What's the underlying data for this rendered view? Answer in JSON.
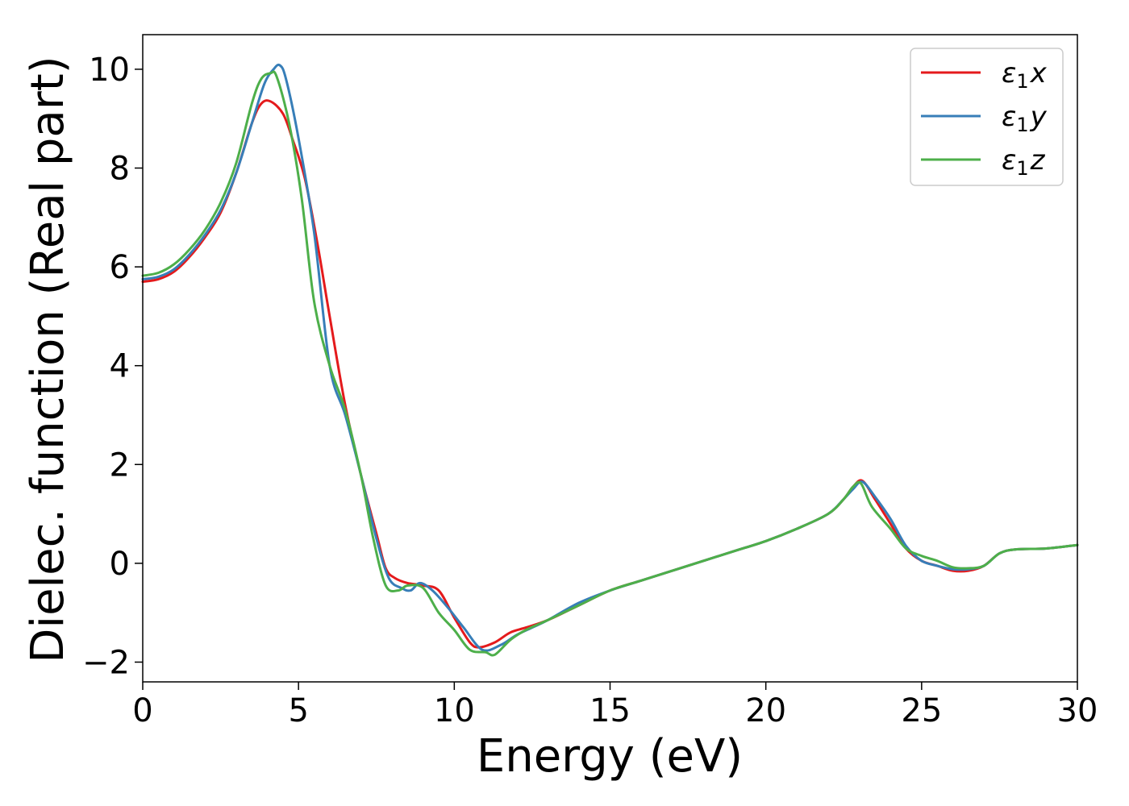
{
  "chart_data": {
    "type": "line",
    "xlabel": "Energy (eV)",
    "ylabel": "Dielec. function (Real part)",
    "xlim": [
      0,
      30
    ],
    "ylim": [
      -2.4,
      10.7
    ],
    "xticks": [
      0,
      5,
      10,
      15,
      20,
      25,
      30
    ],
    "yticks": [
      -2,
      0,
      2,
      4,
      6,
      8,
      10
    ],
    "xtick_labels": [
      "0",
      "5",
      "10",
      "15",
      "20",
      "25",
      "30"
    ],
    "ytick_labels": [
      "−2",
      "0",
      "2",
      "4",
      "6",
      "8",
      "10"
    ],
    "grid": false,
    "legend_position": "top-right",
    "series": [
      {
        "name": "ε₁x",
        "legend_base": "ε",
        "legend_sub": "1",
        "legend_var": "x",
        "color": "#e41a1c",
        "x": [
          0,
          0.5,
          1,
          1.5,
          2,
          2.5,
          3,
          3.5,
          3.8,
          4.1,
          4.5,
          4.8,
          5.2,
          5.6,
          6,
          6.5,
          7,
          7.5,
          7.8,
          8.1,
          8.5,
          9,
          9.5,
          10,
          10.5,
          10.8,
          11.3,
          11.8,
          12.3,
          13,
          14,
          15,
          16,
          17,
          18,
          19,
          20,
          21,
          22,
          22.5,
          22.8,
          23.1,
          23.5,
          24,
          24.5,
          25,
          25.5,
          26,
          26.5,
          27,
          27.5,
          28,
          29,
          30
        ],
        "y": [
          5.7,
          5.75,
          5.9,
          6.2,
          6.6,
          7.1,
          7.9,
          8.9,
          9.3,
          9.35,
          9.1,
          8.6,
          7.8,
          6.5,
          5.0,
          3.2,
          1.8,
          0.6,
          -0.1,
          -0.3,
          -0.4,
          -0.45,
          -0.55,
          -1.1,
          -1.6,
          -1.7,
          -1.6,
          -1.4,
          -1.3,
          -1.15,
          -0.85,
          -0.55,
          -0.35,
          -0.15,
          0.05,
          0.25,
          0.45,
          0.7,
          1.0,
          1.3,
          1.55,
          1.67,
          1.3,
          0.8,
          0.3,
          0.05,
          -0.05,
          -0.15,
          -0.15,
          -0.05,
          0.2,
          0.28,
          0.3,
          0.37
        ]
      },
      {
        "name": "ε₁y",
        "legend_base": "ε",
        "legend_sub": "1",
        "legend_var": "y",
        "color": "#377eb8",
        "x": [
          0,
          0.5,
          1,
          1.5,
          2,
          2.5,
          3,
          3.5,
          3.9,
          4.2,
          4.4,
          4.6,
          5,
          5.5,
          6,
          6.5,
          7,
          7.5,
          7.9,
          8.3,
          8.6,
          8.9,
          9.3,
          9.8,
          10.3,
          10.9,
          11.5,
          12,
          12.5,
          13,
          14,
          15,
          16,
          17,
          18,
          19,
          20,
          21,
          22,
          22.5,
          22.8,
          23.1,
          23.5,
          24,
          24.5,
          25,
          25.5,
          26,
          26.5,
          27,
          27.5,
          28,
          29,
          30
        ],
        "y": [
          5.75,
          5.8,
          5.95,
          6.25,
          6.65,
          7.15,
          7.9,
          8.9,
          9.7,
          10.0,
          10.08,
          9.8,
          8.6,
          6.7,
          4.0,
          3.0,
          1.8,
          0.5,
          -0.3,
          -0.5,
          -0.55,
          -0.4,
          -0.55,
          -0.9,
          -1.3,
          -1.75,
          -1.65,
          -1.45,
          -1.3,
          -1.15,
          -0.8,
          -0.55,
          -0.35,
          -0.15,
          0.05,
          0.25,
          0.45,
          0.7,
          1.0,
          1.3,
          1.5,
          1.65,
          1.35,
          0.9,
          0.35,
          0.05,
          -0.05,
          -0.12,
          -0.12,
          -0.05,
          0.2,
          0.28,
          0.3,
          0.37
        ]
      },
      {
        "name": "ε₁z",
        "legend_base": "ε",
        "legend_sub": "1",
        "legend_var": "z",
        "color": "#4daf4a",
        "x": [
          0,
          0.5,
          1,
          1.5,
          2,
          2.5,
          3,
          3.5,
          3.8,
          4.1,
          4.3,
          4.7,
          5.1,
          5.5,
          6,
          6.5,
          7,
          7.4,
          7.8,
          8.2,
          8.5,
          9,
          9.5,
          10,
          10.5,
          11,
          11.3,
          11.8,
          12.3,
          13,
          14,
          15,
          16,
          17,
          18,
          19,
          20,
          21,
          22,
          22.5,
          22.8,
          23.05,
          23.4,
          24,
          24.5,
          25,
          25.5,
          26,
          26.5,
          27,
          27.5,
          28,
          29,
          30
        ],
        "y": [
          5.82,
          5.88,
          6.05,
          6.35,
          6.75,
          7.3,
          8.1,
          9.3,
          9.8,
          9.92,
          9.85,
          8.9,
          7.4,
          5.3,
          4.0,
          3.1,
          1.8,
          0.5,
          -0.45,
          -0.55,
          -0.45,
          -0.5,
          -1.0,
          -1.35,
          -1.75,
          -1.8,
          -1.85,
          -1.55,
          -1.35,
          -1.15,
          -0.85,
          -0.55,
          -0.35,
          -0.15,
          0.05,
          0.25,
          0.45,
          0.7,
          1.0,
          1.3,
          1.55,
          1.62,
          1.15,
          0.7,
          0.3,
          0.15,
          0.05,
          -0.08,
          -0.1,
          -0.05,
          0.2,
          0.28,
          0.3,
          0.37
        ]
      }
    ]
  }
}
